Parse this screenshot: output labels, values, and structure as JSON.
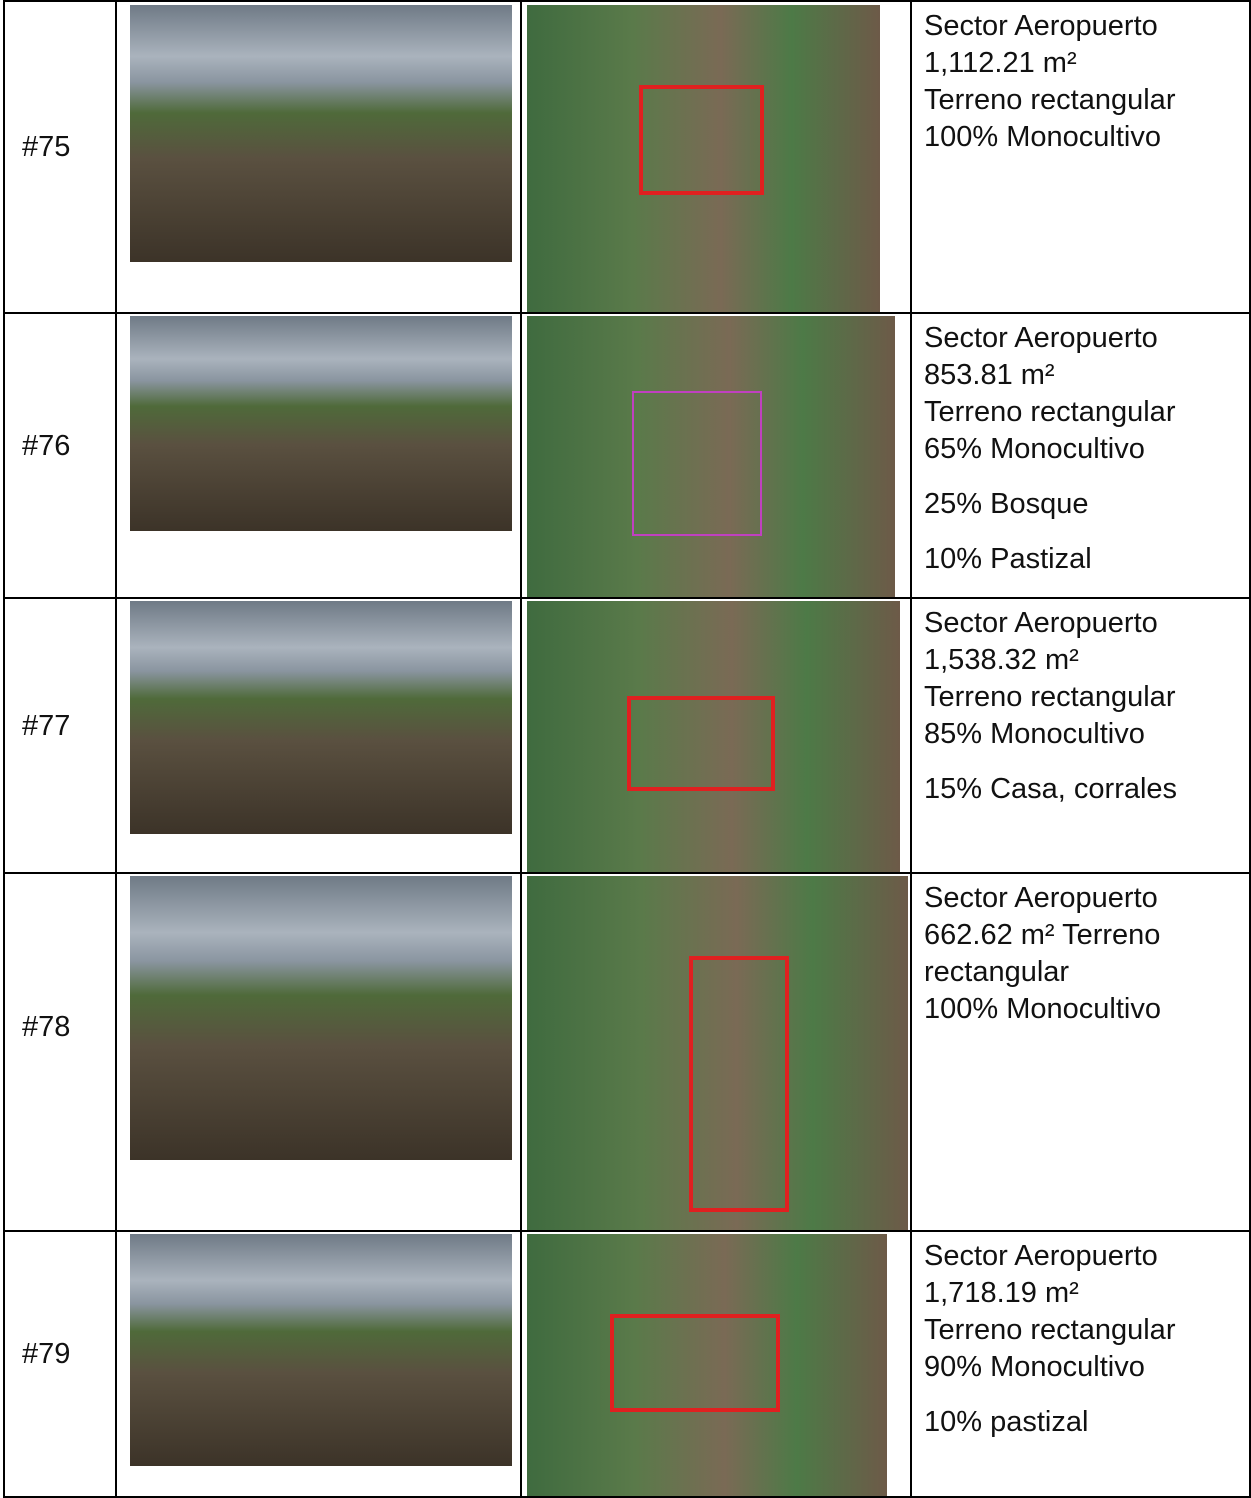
{
  "table": {
    "rows": [
      {
        "id": "#75",
        "lines": [
          "Sector Aeropuerto",
          "1,112.21 m²",
          "Terreno rectangular",
          "100% Monocultivo"
        ],
        "extra": []
      },
      {
        "id": "#76",
        "lines": [
          "Sector Aeropuerto",
          "853.81 m²",
          "Terreno rectangular",
          "65% Monocultivo"
        ],
        "extra": [
          "25% Bosque",
          "10% Pastizal"
        ]
      },
      {
        "id": "#77",
        "lines": [
          "Sector Aeropuerto",
          "1,538.32 m²",
          "Terreno rectangular",
          "85% Monocultivo"
        ],
        "extra": [
          "15% Casa, corrales"
        ]
      },
      {
        "id": "#78",
        "lines": [
          "Sector Aeropuerto",
          "662.62 m² Terreno",
          "rectangular",
          "100% Monocultivo"
        ],
        "extra": []
      },
      {
        "id": "#79",
        "lines": [
          "Sector Aeropuerto",
          "1,718.19 m²",
          "Terreno rectangular",
          "90% Monocultivo"
        ],
        "extra": [
          "10% pastizal"
        ]
      }
    ]
  }
}
